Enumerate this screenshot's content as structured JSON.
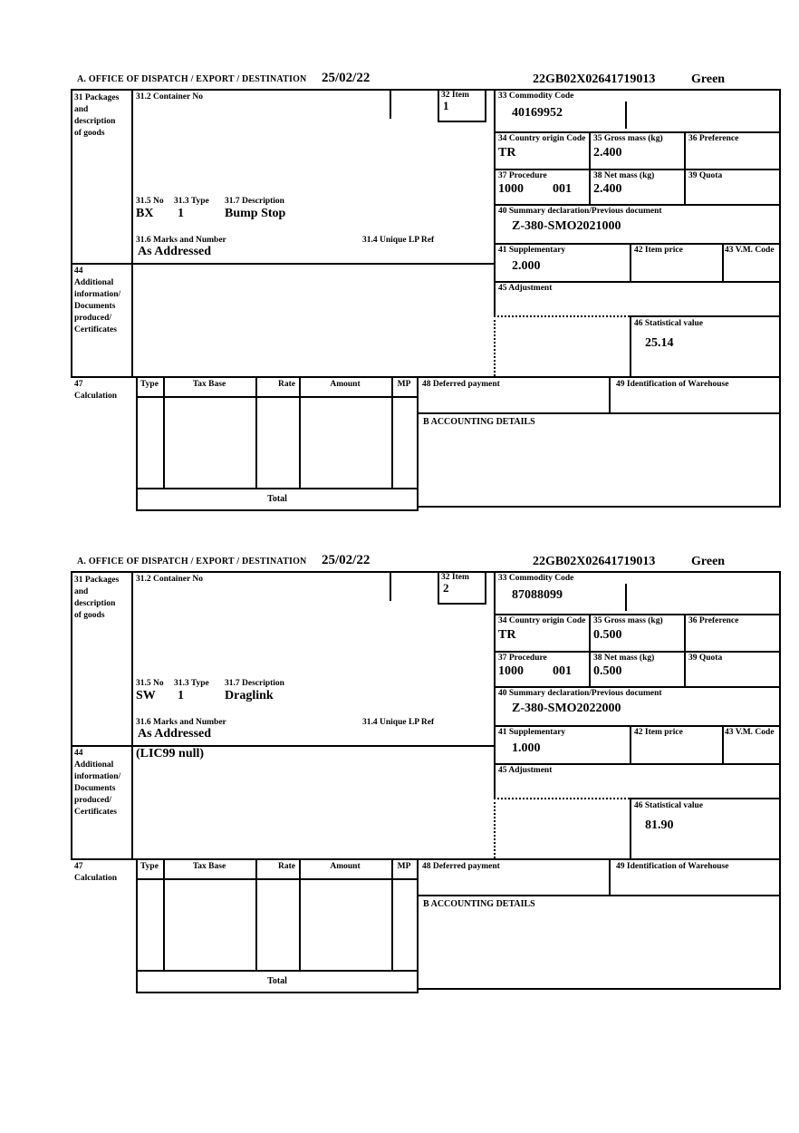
{
  "style": {
    "ink": "#000000",
    "paper": "#ffffff"
  },
  "labels": {
    "office": "A. OFFICE OF DISPATCH / EXPORT / DESTINATION",
    "b31_lines": [
      "31 Packages",
      "and",
      "description",
      "of goods"
    ],
    "b31_2": "31.2 Container No",
    "b32": "32 Item",
    "b33": "33 Commodity Code",
    "b34": "34 Country origin Code",
    "b35": "35 Gross mass (kg)",
    "b36": "36 Preference",
    "b37": "37 Procedure",
    "b38": "38 Net mass (kg)",
    "b39": "39 Quota",
    "b40": "40 Summary declaration/Previous document",
    "b41": "41 Supplementary",
    "b42": "42 Item price",
    "b43": "43 V.M. Code",
    "b44_lines": [
      "44",
      "Additional",
      "information/",
      "Documents",
      "produced/",
      "Certificates"
    ],
    "b45": "45 Adjustment",
    "b46": "46 Statistical value",
    "b47_lines": [
      "47",
      "Calculation"
    ],
    "b31_5": "31.5 No",
    "b31_3": "31.3 Type",
    "b31_7": "31.7 Description",
    "b31_6": "31.6 Marks and Number",
    "b31_4": "31.4 Unique LP Ref",
    "col_type": "Type",
    "col_tax_base": "Tax Base",
    "col_rate": "Rate",
    "col_amount": "Amount",
    "col_mp": "MP",
    "b48": "48 Deferred payment",
    "b49": "49 Identification of Warehouse",
    "accounting": "B ACCOUNTING DETAILS",
    "total": "Total"
  },
  "items": [
    {
      "date": "25/02/22",
      "mrn": "22GB02X02641719013",
      "routing": "Green",
      "item_number": "1",
      "commodity_code": "40169952",
      "country_origin": "TR",
      "gross_mass": "2.400",
      "procedure": "1000",
      "procedure_ext": "001",
      "net_mass": "2.400",
      "previous_document": "Z-380-SMO2021000",
      "supplementary": "2.000",
      "statistical_value": "25.14",
      "package_no": "BX",
      "package_type": "1",
      "goods_description": "Bump Stop",
      "marks_numbers": "As Addressed",
      "additional_info": ""
    },
    {
      "date": "25/02/22",
      "mrn": "22GB02X02641719013",
      "routing": "Green",
      "item_number": "2",
      "commodity_code": "87088099",
      "country_origin": "TR",
      "gross_mass": "0.500",
      "procedure": "1000",
      "procedure_ext": "001",
      "net_mass": "0.500",
      "previous_document": "Z-380-SMO2022000",
      "supplementary": "1.000",
      "statistical_value": "81.90",
      "package_no": "SW",
      "package_type": "1",
      "goods_description": "Draglink",
      "marks_numbers": "As Addressed",
      "additional_info": "(LIC99 null)"
    }
  ]
}
